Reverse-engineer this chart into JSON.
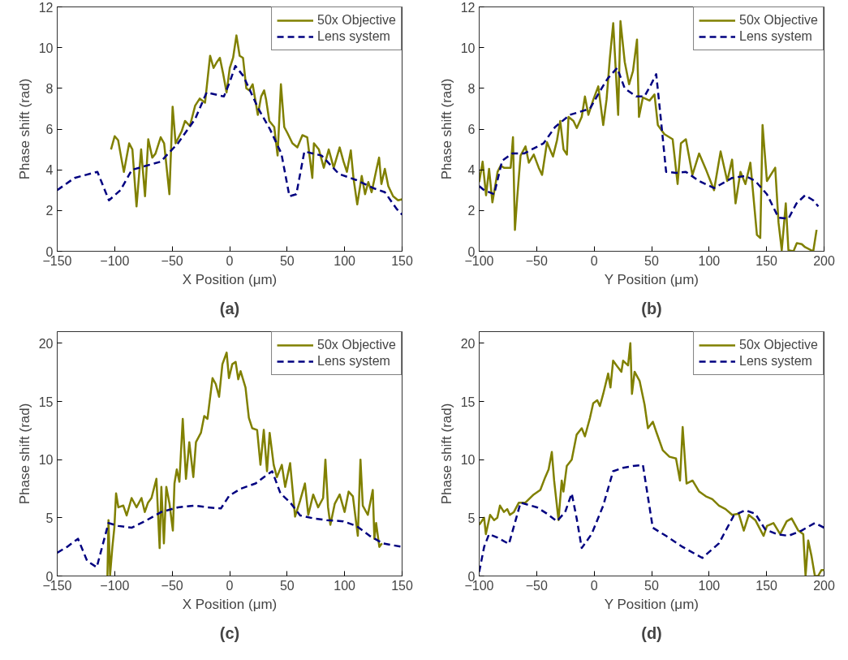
{
  "chart_data": [
    {
      "type": "line",
      "xlabel": "X Position (μm)",
      "ylabel": "Phase shift (rad)",
      "annotations": [
        "(a)"
      ],
      "xlim": [
        -150,
        150
      ],
      "ylim": [
        0,
        12
      ],
      "xticks": [
        -150,
        -100,
        -50,
        0,
        50,
        100,
        150
      ],
      "yticks": [
        0,
        2,
        4,
        6,
        8,
        10,
        12
      ],
      "grid": false,
      "legend": "top right",
      "series": [
        {
          "name": "50x Objective",
          "color": "#808000",
          "line_style": "solid",
          "x": [
            -103.2,
            -100,
            -97,
            -94,
            -92,
            -87.4,
            -84.6,
            -81,
            -77,
            -73.6,
            -70.8,
            -67.3,
            -64.5,
            -60,
            -57,
            -52.4,
            -49.6,
            -47,
            -41.7,
            -38.8,
            -34.6,
            -30,
            -26,
            -21.4,
            -17,
            -14,
            -11,
            -8.5,
            -5.6,
            -2.7,
            0.1,
            3,
            5.9,
            8.7,
            11.6,
            14.5,
            17,
            20,
            24.5,
            27.4,
            30,
            31.7,
            34.5,
            38.8,
            41.7,
            44.6,
            47.5,
            50.3,
            54.6,
            58.9,
            63.3,
            67.5,
            71.9,
            73.3,
            77.6,
            81.9,
            86.2,
            90.5,
            95.7,
            99.1,
            102,
            105.4,
            107.7,
            111,
            114.9,
            117.8,
            120.6,
            123.5,
            127.8,
            130,
            132,
            135,
            138,
            142.2,
            146.5,
            150
          ],
          "values": [
            5.0,
            5.65,
            5.45,
            4.5,
            3.9,
            5.3,
            5.0,
            2.2,
            5.0,
            2.7,
            5.5,
            4.6,
            4.8,
            5.6,
            5.3,
            2.8,
            7.1,
            5.3,
            5.9,
            6.4,
            6.15,
            7.15,
            7.5,
            7.3,
            9.6,
            9.0,
            9.3,
            9.5,
            8.7,
            7.8,
            9.0,
            9.5,
            10.6,
            9.6,
            9.5,
            8.0,
            7.9,
            8.2,
            6.7,
            7.6,
            7.9,
            7.45,
            6.4,
            6.1,
            4.7,
            8.2,
            6.1,
            5.8,
            5.3,
            5.1,
            5.7,
            5.6,
            3.6,
            5.3,
            5.0,
            4.1,
            5.0,
            4.1,
            5.1,
            4.4,
            3.9,
            4.95,
            3.6,
            2.3,
            3.7,
            2.8,
            3.4,
            2.9,
            4.05,
            4.6,
            3.3,
            4.05,
            3.2,
            2.7,
            2.5,
            2.55
          ]
        },
        {
          "name": "Lens system",
          "color": "#000080",
          "line_style": "dashed",
          "x": [
            -150,
            -135,
            -115,
            -105,
            -95,
            -85,
            -60,
            -45,
            -30,
            -20,
            -5,
            0,
            5,
            12,
            25,
            35,
            45,
            52,
            58,
            65,
            80,
            95,
            110,
            125,
            135,
            145,
            150
          ],
          "values": [
            3.0,
            3.6,
            3.9,
            2.5,
            3.0,
            4.0,
            4.4,
            5.3,
            6.5,
            7.8,
            7.6,
            8.3,
            9.1,
            8.6,
            7.0,
            6.0,
            4.8,
            2.7,
            2.8,
            4.9,
            4.7,
            3.8,
            3.5,
            3.1,
            2.9,
            2.1,
            1.8
          ]
        }
      ]
    },
    {
      "type": "line",
      "xlabel": "Y Position (μm)",
      "ylabel": "Phase shift (rad)",
      "annotations": [
        "(b)"
      ],
      "xlim": [
        -100,
        200
      ],
      "ylim": [
        0,
        12
      ],
      "xticks": [
        -100,
        -50,
        0,
        50,
        100,
        150,
        200
      ],
      "yticks": [
        0,
        2,
        4,
        6,
        8,
        10,
        12
      ],
      "grid": false,
      "legend": "top right",
      "series": [
        {
          "name": "50x Objective",
          "color": "#808000",
          "line_style": "solid",
          "x": [
            -100,
            -97,
            -94,
            -91.4,
            -88.5,
            -84,
            -81.3,
            -78.4,
            -75.5,
            -72.6,
            -70.6,
            -68.9,
            -66.9,
            -64,
            -59.7,
            -56.8,
            -52.5,
            -48.2,
            -45.3,
            -41,
            -35.8,
            -32.3,
            -29.5,
            -26.6,
            -23.7,
            -22.3,
            -18,
            -15.1,
            -10.8,
            -8,
            -5,
            -0.7,
            3.6,
            7.9,
            10.8,
            13.7,
            16.6,
            20.9,
            22.9,
            26.6,
            30.4,
            33.8,
            37.3,
            39,
            42.4,
            48.2,
            52.5,
            55.4,
            61.1,
            68.3,
            72.6,
            75.5,
            79.8,
            85.5,
            91.3,
            97,
            104.3,
            110,
            115.8,
            120,
            123,
            127.3,
            131.6,
            135.9,
            141.6,
            144.5,
            146.5,
            150.3,
            157.5,
            160.4,
            163.2,
            166.7,
            169,
            173.4,
            176.3,
            180.6,
            183.5,
            190.6,
            193.5
          ],
          "values": [
            3.4,
            4.4,
            2.75,
            4.05,
            2.4,
            3.9,
            4.2,
            4.1,
            4.1,
            4.1,
            5.6,
            1.05,
            2.65,
            4.7,
            5.15,
            4.35,
            4.75,
            4.1,
            3.75,
            5.35,
            4.65,
            5.45,
            6.4,
            5.0,
            4.75,
            6.6,
            6.4,
            6.05,
            6.6,
            7.6,
            6.7,
            7.45,
            8.1,
            6.2,
            7.45,
            9.5,
            11.2,
            6.7,
            11.3,
            9.3,
            8.2,
            8.85,
            10.4,
            6.6,
            7.55,
            7.4,
            7.7,
            6.2,
            5.75,
            5.5,
            3.3,
            5.3,
            5.5,
            3.75,
            4.8,
            4.05,
            3.0,
            4.9,
            3.45,
            4.5,
            2.35,
            3.9,
            3.3,
            4.35,
            0.8,
            0.65,
            6.2,
            3.45,
            4.1,
            1.4,
            0.05,
            2.35,
            0.05,
            0,
            0.4,
            0.35,
            0.2,
            0,
            1.05
          ]
        },
        {
          "name": "Lens system",
          "color": "#000080",
          "line_style": "dashed",
          "x": [
            -100,
            -95.7,
            -87,
            -80,
            -71.2,
            -61,
            -44,
            -34,
            -21,
            -3.7,
            4.9,
            12,
            20,
            26.6,
            36.6,
            43.8,
            49.6,
            54,
            58.2,
            62.6,
            71.2,
            79.8,
            91.3,
            104.3,
            120,
            131.6,
            140.2,
            150.3,
            160.4,
            169,
            176,
            183.5,
            190.6,
            195
          ],
          "values": [
            3.2,
            3.0,
            2.8,
            4.45,
            4.8,
            4.8,
            5.3,
            6.1,
            6.7,
            7.0,
            7.85,
            8.5,
            9.0,
            8.0,
            7.6,
            7.6,
            8.2,
            8.7,
            6.4,
            3.9,
            3.85,
            3.9,
            3.45,
            3.1,
            3.6,
            3.7,
            3.45,
            2.8,
            1.65,
            1.6,
            2.35,
            2.75,
            2.5,
            2.2
          ]
        }
      ]
    },
    {
      "type": "line",
      "xlabel": "X Position (μm)",
      "ylabel": "Phase shift (rad)",
      "annotations": [
        "(c)"
      ],
      "xlim": [
        -150,
        150
      ],
      "ylim": [
        0,
        21
      ],
      "xticks": [
        -150,
        -100,
        -50,
        0,
        50,
        100,
        150
      ],
      "yticks": [
        0,
        5,
        10,
        15,
        20
      ],
      "grid": false,
      "legend": "top right",
      "series": [
        {
          "name": "50x Objective",
          "color": "#808000",
          "line_style": "solid",
          "x": [
            -106.3,
            -105.4,
            -104,
            -102,
            -100.3,
            -98.8,
            -96.8,
            -92.5,
            -89.6,
            -85.3,
            -81,
            -76.7,
            -73.8,
            -71,
            -68,
            -63.7,
            -60.9,
            -59.4,
            -57.2,
            -55.1,
            -52.3,
            -49.4,
            -48,
            -46,
            -43.7,
            -40.8,
            -38,
            -35.1,
            -31.6,
            -29.3,
            -25,
            -22.1,
            -19.3,
            -14.9,
            -12.1,
            -9.2,
            -6.3,
            -2.6,
            -0.6,
            2.3,
            5.2,
            7.5,
            9.5,
            13.8,
            16.7,
            19.6,
            23.9,
            26.8,
            29.7,
            32.5,
            34.8,
            38.3,
            41.1,
            45.4,
            48.3,
            52.6,
            56.9,
            61.2,
            65.5,
            68.4,
            72.7,
            77,
            81.3,
            83.3,
            85.6,
            87.6,
            91.4,
            95.7,
            100,
            103.5,
            107.2,
            111.5,
            113.8,
            115.8,
            120.2,
            124.5,
            125.9,
            127.4,
            130.2,
            132.5
          ],
          "values": [
            0,
            4.8,
            0.1,
            2.5,
            4.15,
            7.1,
            5.9,
            6.05,
            5.2,
            6.7,
            5.9,
            6.7,
            5.5,
            6.3,
            6.7,
            8.35,
            2.4,
            7.65,
            2.8,
            7.65,
            6.2,
            3.9,
            7.95,
            9.15,
            8.1,
            13.5,
            8.35,
            11.5,
            8.5,
            11.5,
            12.3,
            13.75,
            13.5,
            17.0,
            16.5,
            15.4,
            18.2,
            19.2,
            17.0,
            18.2,
            18.4,
            16.9,
            17.6,
            16.2,
            13.6,
            12.7,
            12.55,
            9.55,
            12.55,
            9.0,
            12.3,
            9.55,
            8.5,
            9.55,
            7.65,
            9.7,
            5.1,
            6.45,
            7.95,
            5.25,
            7.0,
            5.9,
            6.7,
            10.0,
            5.9,
            4.4,
            6.2,
            7.0,
            5.5,
            7.25,
            6.85,
            3.45,
            10.0,
            6.05,
            5.25,
            7.4,
            3.2,
            4.55,
            2.5,
            2.8
          ]
        },
        {
          "name": "Lens system",
          "color": "#000080",
          "line_style": "dashed",
          "x": [
            -150,
            -141.4,
            -131.9,
            -124,
            -115.6,
            -105.4,
            -96.8,
            -85.3,
            -73.8,
            -59.4,
            -45,
            -30.6,
            -19.1,
            -7.6,
            -0.4,
            9.6,
            22.6,
            29.8,
            37,
            44.2,
            52.8,
            61.4,
            73,
            84.4,
            98.8,
            110.3,
            121.8,
            133.3,
            150
          ],
          "values": [
            2.0,
            2.5,
            3.2,
            1.3,
            0.75,
            4.55,
            4.3,
            4.15,
            4.7,
            5.5,
            5.9,
            6.05,
            5.9,
            5.8,
            6.9,
            7.5,
            7.95,
            8.5,
            9.0,
            7.1,
            6.3,
            5.2,
            4.95,
            4.8,
            4.7,
            4.3,
            3.45,
            2.8,
            2.5
          ]
        }
      ]
    },
    {
      "type": "line",
      "xlabel": "Y Position (μm)",
      "ylabel": "Phase shift (rad)",
      "annotations": [
        "(d)"
      ],
      "xlim": [
        -100,
        200
      ],
      "ylim": [
        0,
        21
      ],
      "xticks": [
        -100,
        -50,
        0,
        50,
        100,
        150,
        200
      ],
      "yticks": [
        0,
        5,
        10,
        15,
        20
      ],
      "grid": false,
      "legend": "top right",
      "series": [
        {
          "name": "50x Objective",
          "color": "#808000",
          "line_style": "solid",
          "x": [
            -100,
            -95.7,
            -94.2,
            -90.5,
            -87,
            -84.2,
            -81.9,
            -78.5,
            -75.6,
            -73.3,
            -69.8,
            -65.5,
            -59.8,
            -52.6,
            -46.8,
            -42.5,
            -39.6,
            -36.8,
            -34.8,
            -31,
            -28.2,
            -26.7,
            -23.8,
            -19.5,
            -15.2,
            -10.8,
            -8,
            -3.6,
            -0.8,
            2.7,
            5,
            7.9,
            12.2,
            14.2,
            16.5,
            19.4,
            23.7,
            25.2,
            29.5,
            31.5,
            32.9,
            35.2,
            39.6,
            43.9,
            46.8,
            51.1,
            54,
            59.7,
            65.5,
            71.2,
            74.7,
            77,
            80.4,
            85.6,
            91.4,
            97.1,
            102.8,
            108.6,
            114.3,
            120.1,
            125.8,
            130.2,
            134.5,
            140.2,
            147.4,
            150.3,
            156,
            161.8,
            167.5,
            171.8,
            177.6,
            181.9,
            183.9,
            186.2,
            189.1,
            192,
            194.8,
            197.7,
            200
          ],
          "values": [
            4.4,
            5.0,
            3.6,
            5.25,
            4.8,
            5.0,
            6.05,
            5.5,
            5.75,
            5.25,
            5.5,
            6.3,
            6.3,
            7.0,
            7.4,
            8.5,
            9.15,
            10.65,
            8.2,
            4.8,
            8.2,
            7.25,
            9.45,
            10.0,
            12.15,
            12.7,
            12.0,
            13.6,
            14.85,
            15.1,
            14.6,
            15.65,
            17.4,
            16.2,
            18.5,
            18.1,
            17.55,
            18.5,
            18.1,
            20.0,
            15.65,
            17.55,
            16.75,
            14.7,
            12.7,
            13.25,
            12.4,
            10.8,
            10.25,
            10.1,
            8.2,
            12.8,
            7.95,
            8.2,
            7.25,
            6.85,
            6.6,
            6.05,
            5.75,
            5.25,
            5.35,
            3.9,
            5.25,
            4.8,
            3.45,
            4.3,
            4.55,
            3.6,
            4.7,
            4.95,
            3.9,
            3.6,
            0,
            3.05,
            1.7,
            0,
            0,
            0.5,
            0.5
          ]
        },
        {
          "name": "Lens system",
          "color": "#000080",
          "line_style": "dashed",
          "x": [
            -100,
            -95.7,
            -91.4,
            -84.2,
            -74.1,
            -64,
            -49.7,
            -41,
            -32.4,
            -25.2,
            -19.5,
            -15.2,
            -10.8,
            -2.2,
            7.9,
            16.5,
            25.2,
            33.8,
            42.4,
            51,
            62.5,
            76.9,
            94.1,
            108.5,
            121.5,
            131.5,
            140.2,
            148.8,
            158.8,
            168.9,
            180.4,
            191.9,
            200
          ],
          "values": [
            0.35,
            2.5,
            3.6,
            3.3,
            2.75,
            6.3,
            5.9,
            5.35,
            4.7,
            5.5,
            7.1,
            4.95,
            2.4,
            3.6,
            6.05,
            9.0,
            9.3,
            9.45,
            9.55,
            4.15,
            3.45,
            2.5,
            1.55,
            2.8,
            5.2,
            5.65,
            5.35,
            4.0,
            3.6,
            3.45,
            3.9,
            4.55,
            4.15
          ]
        }
      ]
    }
  ]
}
